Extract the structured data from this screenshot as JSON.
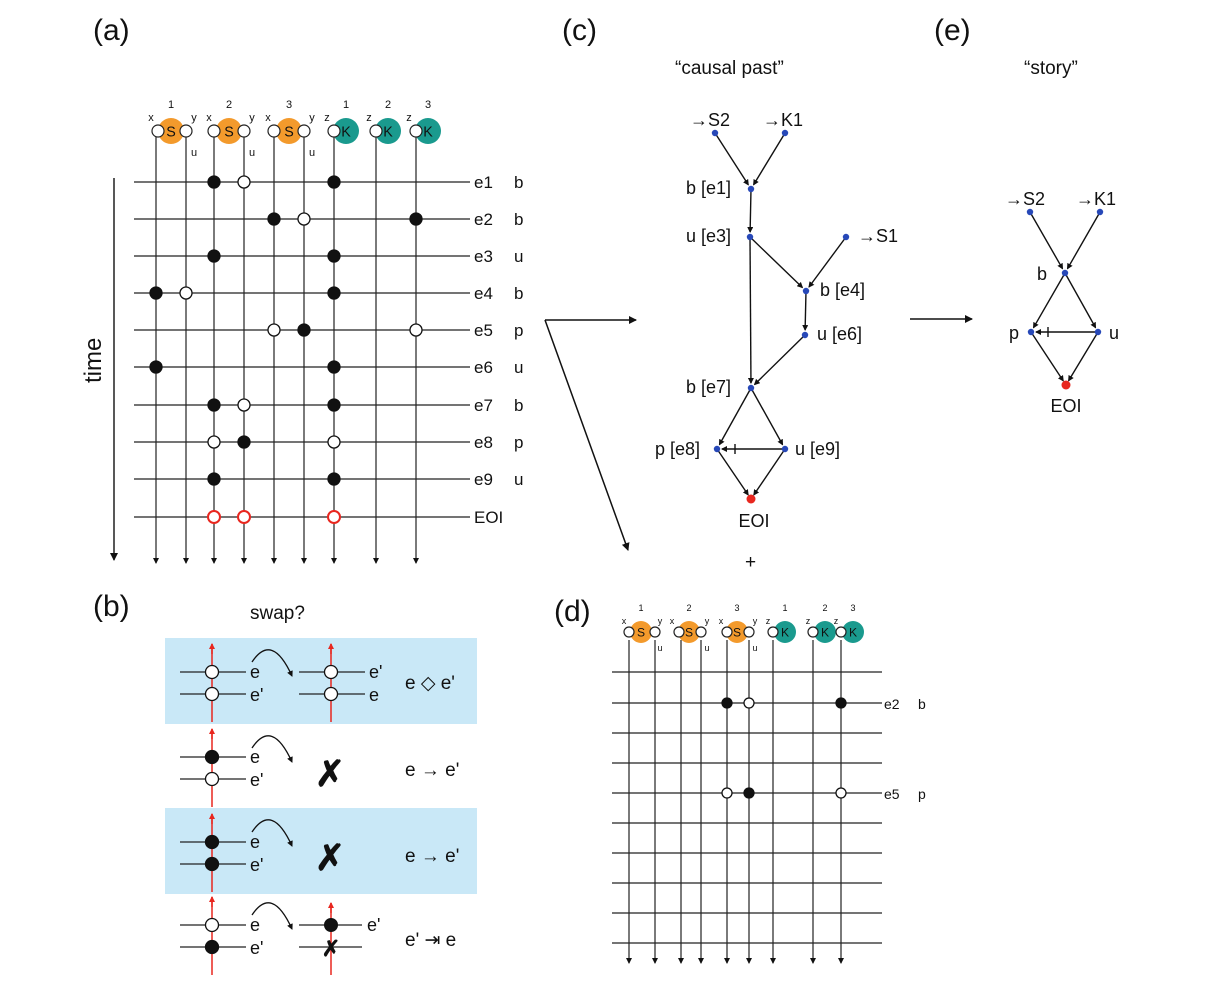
{
  "panels": {
    "a": "(a)",
    "b": "(b)",
    "c": "(c)",
    "d": "(d)",
    "e": "(e)"
  },
  "headings": {
    "causal_past": "“causal past”",
    "story": "“story”",
    "swap": "swap?",
    "plus": "+"
  },
  "time_label": "time",
  "colors": {
    "agent_s": "#f39a2c",
    "agent_k": "#1a9a8e",
    "highlight": "#c9e8f7",
    "eoi_red": "#e8271f",
    "node_blue": "#2748b8"
  },
  "agents": {
    "species": [
      {
        "letter": "S",
        "index": "1",
        "left_site": "x",
        "right_site": "y",
        "sub_site": "u"
      },
      {
        "letter": "S",
        "index": "2",
        "left_site": "x",
        "right_site": "y",
        "sub_site": "u"
      },
      {
        "letter": "S",
        "index": "3",
        "left_site": "x",
        "right_site": "y",
        "sub_site": "u"
      },
      {
        "letter": "K",
        "index": "1",
        "left_site": "z"
      },
      {
        "letter": "K",
        "index": "2",
        "left_site": "z"
      },
      {
        "letter": "K",
        "index": "3",
        "left_site": "z"
      }
    ]
  },
  "events_a": [
    {
      "id": "e1",
      "rule": "b"
    },
    {
      "id": "e2",
      "rule": "b"
    },
    {
      "id": "e3",
      "rule": "u"
    },
    {
      "id": "e4",
      "rule": "b"
    },
    {
      "id": "e5",
      "rule": "p"
    },
    {
      "id": "e6",
      "rule": "u"
    },
    {
      "id": "e7",
      "rule": "b"
    },
    {
      "id": "e8",
      "rule": "p"
    },
    {
      "id": "e9",
      "rule": "u"
    },
    {
      "id": "EOI",
      "rule": ""
    }
  ],
  "events_d": [
    {
      "id": "e2",
      "rule": "b"
    },
    {
      "id": "e5",
      "rule": "p"
    }
  ],
  "swap_rows": [
    {
      "e_top": "e",
      "e_bottom": "e'",
      "result_top": "e'",
      "result_bottom": "e",
      "relation": "e ◇ e'"
    },
    {
      "e_top": "e",
      "e_bottom": "e'",
      "relation": "e → e'"
    },
    {
      "e_top": "e",
      "e_bottom": "e'",
      "relation": "e → e'"
    },
    {
      "e_top": "e",
      "e_bottom": "e'",
      "result_top": "e'",
      "relation": "e' ⇥ e"
    }
  ],
  "causal_past": {
    "nodes": [
      "→S2",
      "→K1",
      "b [e1]",
      "u [e3]",
      "→S1",
      "b [e4]",
      "u [e6]",
      "b [e7]",
      "p [e8]",
      "u [e9]",
      "EOI"
    ]
  },
  "story": {
    "nodes": [
      "→S2",
      "→K1",
      "b",
      "p",
      "u",
      "EOI"
    ]
  }
}
